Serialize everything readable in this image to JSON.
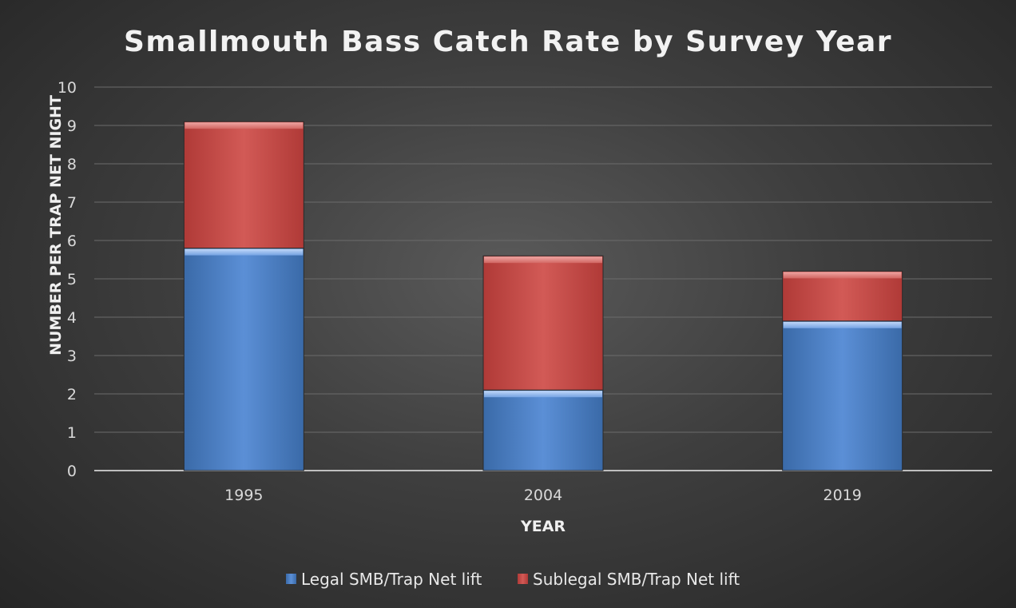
{
  "chart_data": {
    "type": "bar",
    "stacked": true,
    "title": "Smallmouth Bass Catch Rate by Survey Year",
    "xlabel": "YEAR",
    "ylabel": "NUMBER PER TRAP NET NIGHT",
    "categories": [
      "1995",
      "2004",
      "2019"
    ],
    "series": [
      {
        "name": "Legal SMB/Trap Net lift",
        "values": [
          5.8,
          2.1,
          3.9
        ],
        "color": "#4f81bd"
      },
      {
        "name": "Sublegal SMB/Trap Net lift",
        "values": [
          3.3,
          3.5,
          1.3
        ],
        "color": "#c0504d"
      }
    ],
    "ylim": [
      0,
      10
    ],
    "yticks": [
      0,
      1,
      2,
      3,
      4,
      5,
      6,
      7,
      8,
      9,
      10
    ],
    "grid": true,
    "legend_position": "bottom"
  }
}
